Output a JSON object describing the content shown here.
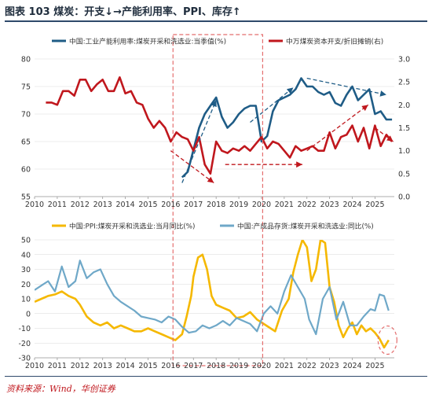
{
  "header": {
    "title": "图表 103  煤炭：开支↓→产能利用率、PPI、库存↑"
  },
  "footer": {
    "source": "资料来源：Wind，华创证券"
  },
  "colors": {
    "navy": "#1f5c86",
    "red": "#c0171d",
    "yellow": "#f5b800",
    "lightblue": "#6fa8c8",
    "grid": "#d9d9d9",
    "highlight": "#e46e6e",
    "trend_arrow": "#1f5c86"
  },
  "chart_data": [
    {
      "type": "line",
      "x_ticks": [
        "2010",
        "2011",
        "2012",
        "2013",
        "2014",
        "2015",
        "2016",
        "2017",
        "2018",
        "2019",
        "2020",
        "2021",
        "2022",
        "2023",
        "2024",
        "2025"
      ],
      "xlim": [
        2010,
        2025.85
      ],
      "ylim_left": [
        55,
        80
      ],
      "yticks_left": [
        "55",
        "60",
        "65",
        "70",
        "75",
        "80"
      ],
      "ylim_right": [
        0.0,
        3.0
      ],
      "yticks_right": [
        "0.0",
        "0.5",
        "1.0",
        "1.5",
        "2.0",
        "2.5",
        "3.0"
      ],
      "legend": [
        "中国:工业产能利用率:煤炭开采和洗选业:当季值(%)",
        "中万煤炭资本开支/折旧摊销(右)"
      ],
      "series": [
        {
          "name": "中国:工业产能利用率:煤炭开采和洗选业:当季值(%)",
          "axis": "left",
          "x": [
            2016.5,
            2016.75,
            2017.0,
            2017.25,
            2017.5,
            2017.75,
            2018.0,
            2018.25,
            2018.5,
            2018.75,
            2019.0,
            2019.25,
            2019.5,
            2019.75,
            2020.0,
            2020.25,
            2020.5,
            2020.75,
            2021.0,
            2021.25,
            2021.5,
            2021.75,
            2022.0,
            2022.25,
            2022.5,
            2022.75,
            2023.0,
            2023.25,
            2023.5,
            2023.75,
            2024.0,
            2024.25,
            2024.5,
            2024.75,
            2025.0,
            2025.25,
            2025.5,
            2025.75
          ],
          "y": [
            58.5,
            59.5,
            63.5,
            67.5,
            70.0,
            71.5,
            73.0,
            69.5,
            67.5,
            68.5,
            70.0,
            71.0,
            71.5,
            71.5,
            65.0,
            66.0,
            70.5,
            72.5,
            73.0,
            73.5,
            74.5,
            76.5,
            75.0,
            75.0,
            74.0,
            73.5,
            74.0,
            72.0,
            71.5,
            73.5,
            75.0,
            72.5,
            73.5,
            74.5,
            70.0,
            70.5,
            69.0,
            69.0
          ]
        },
        {
          "name": "中万煤炭资本开支/折旧摊销(右)",
          "axis": "right",
          "x": [
            2010.5,
            2010.75,
            2011.0,
            2011.25,
            2011.5,
            2011.75,
            2012.0,
            2012.25,
            2012.5,
            2012.75,
            2013.0,
            2013.25,
            2013.5,
            2013.75,
            2014.0,
            2014.25,
            2014.5,
            2014.75,
            2015.0,
            2015.25,
            2015.5,
            2015.75,
            2016.0,
            2016.25,
            2016.5,
            2016.75,
            2017.0,
            2017.25,
            2017.5,
            2017.75,
            2018.0,
            2018.25,
            2018.5,
            2018.75,
            2019.0,
            2019.25,
            2019.5,
            2019.75,
            2020.0,
            2020.25,
            2020.5,
            2020.75,
            2021.0,
            2021.25,
            2021.5,
            2021.75,
            2022.0,
            2022.25,
            2022.5,
            2022.75,
            2023.0,
            2023.25,
            2023.5,
            2023.75,
            2024.0,
            2024.25,
            2024.5,
            2024.75,
            2025.0,
            2025.25,
            2025.5,
            2025.75
          ],
          "y": [
            2.05,
            2.05,
            2.0,
            2.3,
            2.3,
            2.2,
            2.55,
            2.55,
            2.3,
            2.45,
            2.55,
            2.3,
            2.3,
            2.6,
            2.25,
            2.3,
            2.05,
            2.0,
            1.7,
            1.5,
            1.65,
            1.5,
            1.2,
            1.4,
            1.3,
            1.25,
            1.0,
            1.3,
            0.7,
            0.5,
            1.2,
            1.0,
            0.95,
            1.05,
            1.0,
            1.1,
            1.0,
            1.15,
            1.3,
            1.05,
            1.2,
            1.15,
            1.0,
            0.85,
            1.1,
            1.0,
            1.05,
            1.1,
            1.0,
            1.0,
            1.4,
            1.05,
            1.3,
            1.35,
            1.55,
            1.2,
            1.5,
            1.05,
            1.55,
            1.1,
            1.35,
            1.2
          ]
        }
      ],
      "arrows": [
        {
          "color": "red",
          "from": [
            2016.0,
            1.0
          ],
          "to": [
            2017.9,
            0.3
          ],
          "axis": "right"
        },
        {
          "color": "red",
          "from": [
            2018.4,
            0.7
          ],
          "to": [
            2021.8,
            0.7
          ],
          "axis": "right"
        },
        {
          "color": "red",
          "from": [
            2022.0,
            1.0
          ],
          "to": [
            2024.7,
            2.0
          ],
          "axis": "right"
        },
        {
          "color": "red",
          "from": [
            2025.0,
            1.5
          ],
          "to": [
            2025.8,
            1.2
          ],
          "axis": "right"
        },
        {
          "color": "navy",
          "from": [
            2016.5,
            57.5
          ],
          "to": [
            2018.0,
            72.5
          ],
          "axis": "left"
        },
        {
          "color": "navy",
          "from": [
            2019.5,
            68.5
          ],
          "to": [
            2021.4,
            74.8
          ],
          "axis": "left"
        },
        {
          "color": "navy",
          "from": [
            2022.0,
            76.5
          ],
          "to": [
            2025.5,
            73.5
          ],
          "axis": "left"
        }
      ]
    },
    {
      "type": "line",
      "x_ticks": [
        "2010",
        "2011",
        "2012",
        "2013",
        "2014",
        "2015",
        "2016",
        "2017",
        "2018",
        "2019",
        "2020",
        "2021",
        "2022",
        "2023",
        "2024",
        "2025"
      ],
      "xlim": [
        2010,
        2025.85
      ],
      "ylim": [
        -30,
        50
      ],
      "yticks": [
        "-30",
        "-20",
        "-10",
        "0",
        "10",
        "20",
        "30",
        "40",
        "50"
      ],
      "legend": [
        "中国:PPI:煤炭开采和洗选业:当月同比(%)",
        "中国:产成品存货:煤炭开采和洗选业:同比(%)"
      ],
      "series": [
        {
          "name": "中国:PPI:煤炭开采和洗选业:当月同比(%)",
          "x": [
            2010.0,
            2010.3,
            2010.6,
            2010.9,
            2011.2,
            2011.5,
            2011.8,
            2012.0,
            2012.3,
            2012.6,
            2012.9,
            2013.2,
            2013.5,
            2013.8,
            2014.1,
            2014.4,
            2014.7,
            2015.0,
            2015.3,
            2015.6,
            2015.9,
            2016.2,
            2016.5,
            2016.7,
            2016.9,
            2017.0,
            2017.2,
            2017.4,
            2017.6,
            2017.8,
            2018.0,
            2018.3,
            2018.6,
            2018.9,
            2019.2,
            2019.5,
            2019.8,
            2020.0,
            2020.3,
            2020.6,
            2020.9,
            2021.2,
            2021.4,
            2021.6,
            2021.8,
            2022.0,
            2022.2,
            2022.4,
            2022.6,
            2022.8,
            2023.0,
            2023.2,
            2023.4,
            2023.6,
            2023.8,
            2024.0,
            2024.2,
            2024.4,
            2024.6,
            2024.8,
            2025.0,
            2025.2,
            2025.4,
            2025.6
          ],
          "y": [
            8,
            10,
            12,
            13,
            15,
            12,
            10,
            6,
            -2,
            -6,
            -8,
            -6,
            -10,
            -8,
            -10,
            -12,
            -12,
            -10,
            -12,
            -14,
            -16,
            -18,
            -14,
            -2,
            12,
            25,
            38,
            40,
            30,
            12,
            6,
            4,
            2,
            -3,
            -2,
            1,
            -4,
            -6,
            -9,
            -12,
            2,
            10,
            28,
            40,
            50,
            45,
            22,
            30,
            50,
            48,
            18,
            8,
            -8,
            -16,
            -10,
            -6,
            -14,
            -8,
            -12,
            -10,
            -13,
            -17,
            -23,
            -18
          ]
        },
        {
          "name": "中国:产成品存货:煤炭开采和洗选业:同比(%)",
          "x": [
            2010.0,
            2010.3,
            2010.6,
            2010.9,
            2011.2,
            2011.5,
            2011.8,
            2012.0,
            2012.3,
            2012.6,
            2012.9,
            2013.2,
            2013.5,
            2013.8,
            2014.1,
            2014.4,
            2014.7,
            2015.0,
            2015.3,
            2015.6,
            2015.9,
            2016.2,
            2016.5,
            2016.8,
            2017.1,
            2017.4,
            2017.7,
            2018.0,
            2018.3,
            2018.6,
            2018.9,
            2019.2,
            2019.5,
            2019.8,
            2020.1,
            2020.4,
            2020.7,
            2021.0,
            2021.3,
            2021.6,
            2021.9,
            2022.1,
            2022.4,
            2022.7,
            2023.0,
            2023.3,
            2023.6,
            2023.9,
            2024.2,
            2024.5,
            2024.8,
            2025.0,
            2025.2,
            2025.4,
            2025.6
          ],
          "y": [
            16,
            19,
            22,
            15,
            32,
            18,
            22,
            36,
            24,
            28,
            30,
            20,
            12,
            8,
            5,
            2,
            -2,
            -3,
            -4,
            -6,
            -2,
            -4,
            -9,
            -13,
            -12,
            -8,
            -10,
            -8,
            -5,
            -8,
            -3,
            -5,
            -7,
            -12,
            0,
            5,
            0,
            15,
            26,
            18,
            10,
            -4,
            -14,
            10,
            18,
            -4,
            8,
            -8,
            -8,
            -2,
            3,
            2,
            13,
            12,
            2
          ]
        }
      ]
    }
  ]
}
